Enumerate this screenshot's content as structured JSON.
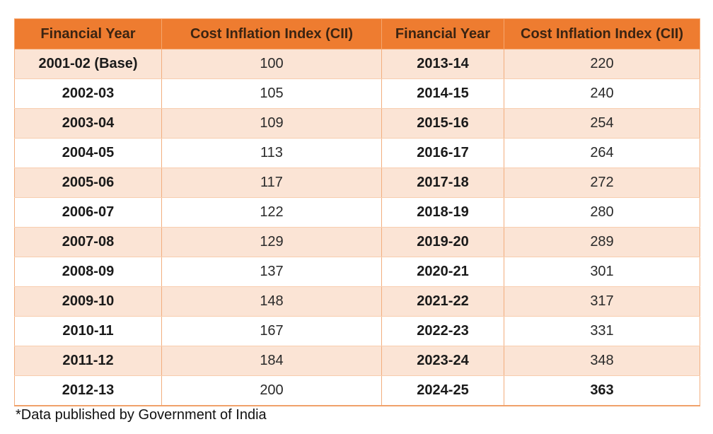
{
  "table": {
    "headers": [
      "Financial Year",
      "Cost Inflation Index (CII)",
      "Financial Year",
      "Cost Inflation Index (CII)"
    ],
    "rows": [
      {
        "year_a": "2001-02 (Base)",
        "cii_a": "100",
        "year_b": "2013-14",
        "cii_b": "220"
      },
      {
        "year_a": "2002-03",
        "cii_a": "105",
        "year_b": "2014-15",
        "cii_b": "240"
      },
      {
        "year_a": "2003-04",
        "cii_a": "109",
        "year_b": "2015-16",
        "cii_b": "254"
      },
      {
        "year_a": "2004-05",
        "cii_a": "113",
        "year_b": "2016-17",
        "cii_b": "264"
      },
      {
        "year_a": "2005-06",
        "cii_a": "117",
        "year_b": "2017-18",
        "cii_b": "272"
      },
      {
        "year_a": "2006-07",
        "cii_a": "122",
        "year_b": "2018-19",
        "cii_b": "280"
      },
      {
        "year_a": "2007-08",
        "cii_a": "129",
        "year_b": "2019-20",
        "cii_b": "289"
      },
      {
        "year_a": "2008-09",
        "cii_a": "137",
        "year_b": "2020-21",
        "cii_b": "301"
      },
      {
        "year_a": "2009-10",
        "cii_a": "148",
        "year_b": "2021-22",
        "cii_b": "317"
      },
      {
        "year_a": "2010-11",
        "cii_a": "167",
        "year_b": "2022-23",
        "cii_b": "331"
      },
      {
        "year_a": "2011-12",
        "cii_a": "184",
        "year_b": "2023-24",
        "cii_b": "348"
      },
      {
        "year_a": "2012-13",
        "cii_a": "200",
        "year_b": "2024-25",
        "cii_b": "363"
      }
    ]
  },
  "footnote": "*Data published by Government of India",
  "colors": {
    "header_bg": "#ee7c30",
    "stripe_bg": "#fbe4d5",
    "border": "#f2ae7e"
  }
}
